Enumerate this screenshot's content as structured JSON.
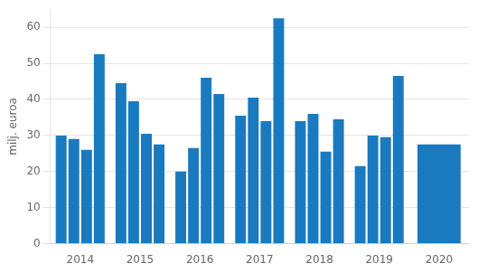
{
  "chart_data": {
    "type": "bar",
    "ylabel": "milj. euroa",
    "categories": [
      "2014",
      "2015",
      "2016",
      "2017",
      "2018",
      "2019",
      "2020"
    ],
    "series": [
      {
        "color": "#1a7abf",
        "values": [
          30.0,
          44.5,
          20.0,
          35.5,
          34.0,
          21.5,
          27.5
        ]
      },
      {
        "color": "#1a7abf",
        "values": [
          29.0,
          39.5,
          26.5,
          40.5,
          36.0,
          30.0,
          null
        ]
      },
      {
        "color": "#1a7abf",
        "values": [
          26.0,
          30.5,
          46.0,
          34.0,
          25.5,
          29.5,
          null
        ]
      },
      {
        "color": "#1a7abf",
        "values": [
          52.5,
          27.5,
          41.5,
          62.5,
          34.5,
          46.5,
          null
        ]
      }
    ],
    "ylim": [
      0,
      65
    ],
    "yticks": [
      0,
      10,
      20,
      30,
      40,
      50,
      60
    ],
    "grid": true
  }
}
